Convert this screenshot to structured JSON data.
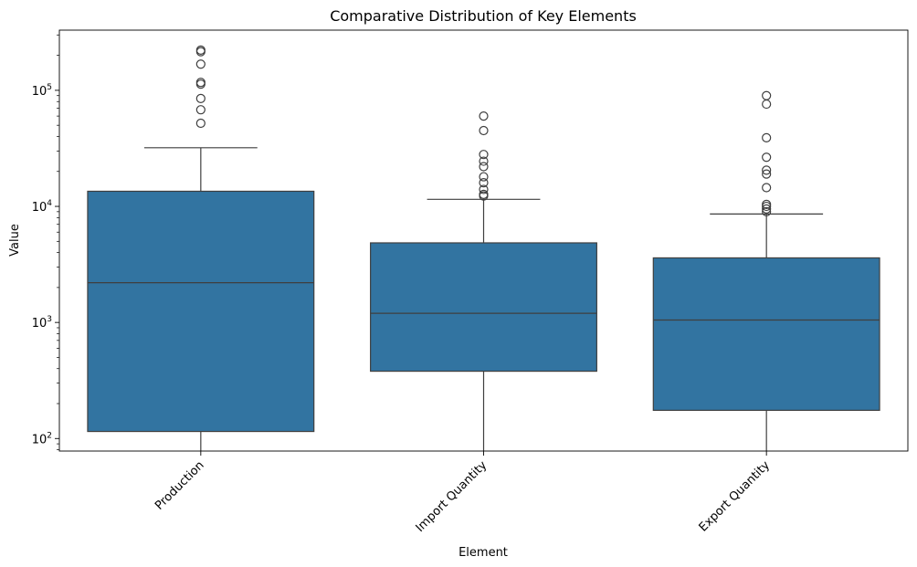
{
  "chart_data": {
    "type": "box",
    "title": "Comparative Distribution of Key Elements",
    "xlabel": "Element",
    "ylabel": "Value",
    "yscale": "log",
    "ylim": [
      78,
      330000
    ],
    "yticks": [
      {
        "value": 100,
        "base": "10",
        "exp": "2"
      },
      {
        "value": 1000,
        "base": "10",
        "exp": "3"
      },
      {
        "value": 10000,
        "base": "10",
        "exp": "4"
      },
      {
        "value": 100000,
        "base": "10",
        "exp": "5"
      }
    ],
    "grid": false,
    "box_color": "#3274a1",
    "categories": [
      "Production",
      "Import Quantity",
      "Export Quantity"
    ],
    "boxes": [
      {
        "category": "Production",
        "whisker_low": 78,
        "q1": 115,
        "median": 2200,
        "q3": 13500,
        "whisker_high": 32000,
        "outliers": [
          52000,
          68000,
          85000,
          113000,
          117000,
          168000,
          215000,
          222000
        ]
      },
      {
        "category": "Import Quantity",
        "whisker_low": 78,
        "q1": 380,
        "median": 1200,
        "q3": 4850,
        "whisker_high": 11500,
        "outliers": [
          12300,
          12700,
          14000,
          16000,
          18000,
          22000,
          24500,
          28000,
          45000,
          60000
        ]
      },
      {
        "category": "Export Quantity",
        "whisker_low": 78,
        "q1": 175,
        "median": 1050,
        "q3": 3600,
        "whisker_high": 8600,
        "outliers": [
          9000,
          9500,
          10000,
          10400,
          14500,
          19000,
          20500,
          26500,
          39000,
          76000,
          90000
        ]
      }
    ]
  }
}
